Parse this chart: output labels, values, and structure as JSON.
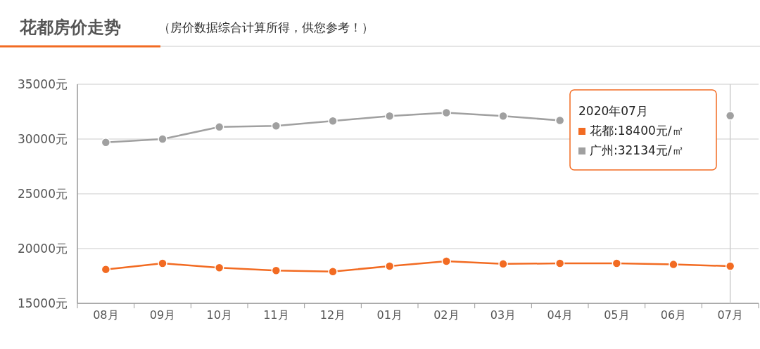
{
  "chart_data": {
    "type": "line",
    "title": "花都房价走势",
    "subtitle": "（房价数据综合计算所得，供您参考！）",
    "categories": [
      "08月",
      "09月",
      "10月",
      "11月",
      "12月",
      "01月",
      "02月",
      "03月",
      "04月",
      "05月",
      "06月",
      "07月"
    ],
    "series": [
      {
        "name": "花都",
        "color": "#f26b22",
        "values": [
          18100,
          18650,
          18250,
          18000,
          17900,
          18400,
          18850,
          18600,
          18650,
          18650,
          18550,
          18400
        ]
      },
      {
        "name": "广州",
        "color": "#a0a0a0",
        "values": [
          29700,
          30000,
          31100,
          31200,
          31650,
          32100,
          32400,
          32100,
          31700,
          null,
          null,
          32134
        ]
      }
    ],
    "ylim": [
      15000,
      35000
    ],
    "yticks": [
      {
        "value": 15000,
        "label": "15000元"
      },
      {
        "value": 20000,
        "label": "20000元"
      },
      {
        "value": 25000,
        "label": "25000元"
      },
      {
        "value": 30000,
        "label": "30000元"
      },
      {
        "value": 35000,
        "label": "35000元"
      }
    ],
    "grid": "y",
    "marker": "circle",
    "legend": "top right",
    "legend_title": "2020年07月",
    "annotations": [
      ":18400元/㎡",
      ":32134元/㎡"
    ],
    "ref_lines": [
      {
        "axis": "x",
        "value": "07月",
        "color": "#cccccc"
      }
    ]
  }
}
